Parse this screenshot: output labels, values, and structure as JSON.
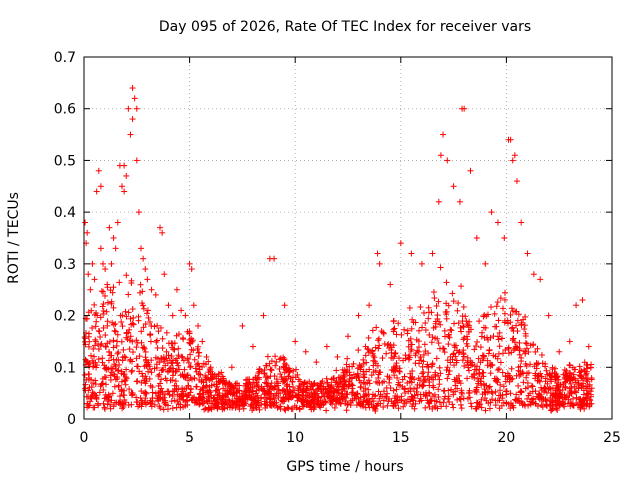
{
  "chart_data": {
    "type": "scatter",
    "title": "Day 095 of 2026, Rate Of TEC Index for receiver vars",
    "xlabel": "GPS time / hours",
    "ylabel": "ROTI / TECUs",
    "xlim": [
      0,
      25
    ],
    "ylim": [
      0,
      0.7
    ],
    "xticks": [
      0,
      5,
      10,
      15,
      20,
      25
    ],
    "yticks": [
      0,
      0.1,
      0.2,
      0.3,
      0.4,
      0.5,
      0.6,
      0.7
    ],
    "xtick_labels": [
      "0",
      "5",
      "10",
      "15",
      "20",
      "25"
    ],
    "ytick_labels": [
      "0",
      "0.1",
      "0.2",
      "0.3",
      "0.4",
      "0.5",
      "0.6",
      "0.7"
    ],
    "grid": true,
    "marker": "+",
    "series": [
      {
        "name": "ROTI",
        "color": "#ff0000",
        "x": [
          0.05,
          0.1,
          0.2,
          0.3,
          0.4,
          0.5,
          0.6,
          0.7,
          0.8,
          0.9,
          1.0,
          1.1,
          1.2,
          1.3,
          1.4,
          1.5,
          1.6,
          1.7,
          1.8,
          1.9,
          2.0,
          2.1,
          2.2,
          2.3,
          2.4,
          2.5,
          2.6,
          2.7,
          2.8,
          2.9,
          3.0,
          3.2,
          3.4,
          3.6,
          3.8,
          4.0,
          4.2,
          4.4,
          4.6,
          4.8,
          5.0,
          5.2,
          5.4,
          5.6,
          5.8,
          6.0,
          6.5,
          7.0,
          7.5,
          8.0,
          8.5,
          9.0,
          9.5,
          10.0,
          10.5,
          11.0,
          11.5,
          12.0,
          12.5,
          13.0,
          13.5,
          14.0,
          14.5,
          15.0,
          15.5,
          16.0,
          16.5,
          16.8,
          17.0,
          17.2,
          17.5,
          17.8,
          18.0,
          18.3,
          18.6,
          19.0,
          19.3,
          19.6,
          19.9,
          20.1,
          20.3,
          20.5,
          20.7,
          21.0,
          21.3,
          21.6,
          22.0,
          22.5,
          23.0,
          23.3,
          23.6,
          23.9,
          24.0,
          0.15,
          0.8,
          1.9,
          2.3,
          2.5,
          3.7,
          5.1,
          8.8,
          13.9,
          16.9,
          17.9,
          20.2,
          20.4
        ],
        "y": [
          0.38,
          0.34,
          0.28,
          0.25,
          0.3,
          0.27,
          0.44,
          0.48,
          0.33,
          0.3,
          0.29,
          0.26,
          0.37,
          0.3,
          0.35,
          0.33,
          0.38,
          0.49,
          0.45,
          0.44,
          0.47,
          0.6,
          0.55,
          0.58,
          0.62,
          0.5,
          0.4,
          0.33,
          0.31,
          0.29,
          0.27,
          0.25,
          0.24,
          0.37,
          0.28,
          0.22,
          0.2,
          0.25,
          0.21,
          0.2,
          0.3,
          0.22,
          0.18,
          0.15,
          0.12,
          0.1,
          0.09,
          0.1,
          0.18,
          0.14,
          0.2,
          0.31,
          0.22,
          0.15,
          0.13,
          0.11,
          0.14,
          0.12,
          0.16,
          0.2,
          0.22,
          0.3,
          0.26,
          0.34,
          0.32,
          0.3,
          0.32,
          0.42,
          0.55,
          0.5,
          0.45,
          0.42,
          0.6,
          0.48,
          0.35,
          0.3,
          0.4,
          0.38,
          0.35,
          0.54,
          0.5,
          0.46,
          0.38,
          0.32,
          0.28,
          0.27,
          0.2,
          0.13,
          0.15,
          0.22,
          0.23,
          0.14,
          0.1,
          0.36,
          0.45,
          0.49,
          0.64,
          0.6,
          0.36,
          0.29,
          0.31,
          0.32,
          0.51,
          0.6,
          0.54,
          0.51
        ]
      }
    ],
    "density_envelope": {
      "note": "approximate upper envelope of the dense point cloud (hours, ROTI)",
      "x": [
        0,
        0.5,
        1.0,
        1.5,
        2.0,
        2.5,
        3.0,
        3.5,
        4.0,
        4.5,
        5.0,
        5.5,
        6.0,
        6.5,
        7.0,
        7.5,
        8.0,
        8.5,
        9.0,
        9.5,
        10.0,
        10.5,
        11.0,
        11.5,
        12.0,
        12.5,
        13.0,
        13.5,
        14.0,
        14.5,
        15.0,
        15.5,
        16.0,
        16.5,
        17.0,
        17.5,
        18.0,
        18.5,
        19.0,
        19.5,
        20.0,
        20.5,
        21.0,
        21.5,
        22.0,
        22.5,
        23.0,
        23.5,
        24.0
      ],
      "y": [
        0.22,
        0.22,
        0.24,
        0.24,
        0.27,
        0.28,
        0.22,
        0.18,
        0.16,
        0.16,
        0.18,
        0.13,
        0.1,
        0.08,
        0.07,
        0.07,
        0.09,
        0.11,
        0.13,
        0.12,
        0.09,
        0.07,
        0.07,
        0.08,
        0.09,
        0.11,
        0.12,
        0.15,
        0.17,
        0.19,
        0.2,
        0.19,
        0.2,
        0.24,
        0.27,
        0.25,
        0.22,
        0.19,
        0.2,
        0.23,
        0.24,
        0.22,
        0.18,
        0.14,
        0.1,
        0.09,
        0.1,
        0.1,
        0.1
      ]
    }
  }
}
